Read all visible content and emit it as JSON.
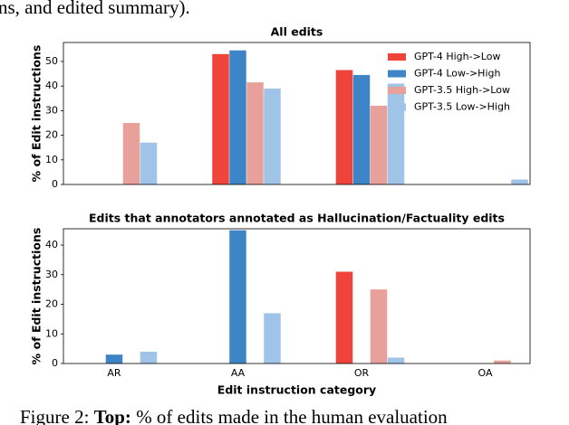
{
  "text_above": "ns, and edited summary).",
  "caption": {
    "label": "Figure 2:",
    "bold": "Top:",
    "rest": "% of edits made in the human evaluation"
  },
  "chart_data": [
    {
      "type": "bar",
      "title": "All edits",
      "ylabel": "% of Edit instructions",
      "categories": [
        null,
        null,
        null,
        null
      ],
      "series": [
        {
          "name": "GPT-4 High->Low",
          "color": "#f0433a",
          "values": [
            0,
            53,
            46.5,
            0
          ]
        },
        {
          "name": "GPT-4 Low->High",
          "color": "#3d85c6",
          "values": [
            0,
            54.5,
            44.5,
            0
          ]
        },
        {
          "name": "GPT-3.5 High->Low",
          "color": "#e8a09a",
          "values": [
            25,
            41.5,
            32,
            0
          ]
        },
        {
          "name": "GPT-3.5 Low->High",
          "color": "#a0c4e8",
          "values": [
            17,
            39,
            41,
            2
          ]
        }
      ],
      "ylim": [
        0,
        57.7
      ],
      "yticks": [
        0,
        10,
        20,
        30,
        40,
        50
      ],
      "legend": "upper right"
    },
    {
      "type": "bar",
      "title": "Edits that annotators annotated as Hallucination/Factuality edits",
      "ylabel": "% of Edit instructions",
      "xlabel": "Edit instruction category",
      "categories": [
        "AR",
        "AA",
        "OR",
        "OA"
      ],
      "series": [
        {
          "name": "GPT-4 High->Low",
          "color": "#f0433a",
          "values": [
            0,
            0,
            31,
            0
          ]
        },
        {
          "name": "GPT-4 Low->High",
          "color": "#3d85c6",
          "values": [
            3,
            45,
            0,
            0
          ]
        },
        {
          "name": "GPT-3.5 High->Low",
          "color": "#e8a09a",
          "values": [
            0,
            0,
            25,
            1
          ]
        },
        {
          "name": "GPT-3.5 Low->High",
          "color": "#a0c4e8",
          "values": [
            4,
            17,
            2,
            0
          ]
        }
      ],
      "ylim": [
        0,
        45.5
      ],
      "yticks": [
        0,
        10,
        20,
        30,
        40
      ],
      "legend": "none"
    }
  ]
}
